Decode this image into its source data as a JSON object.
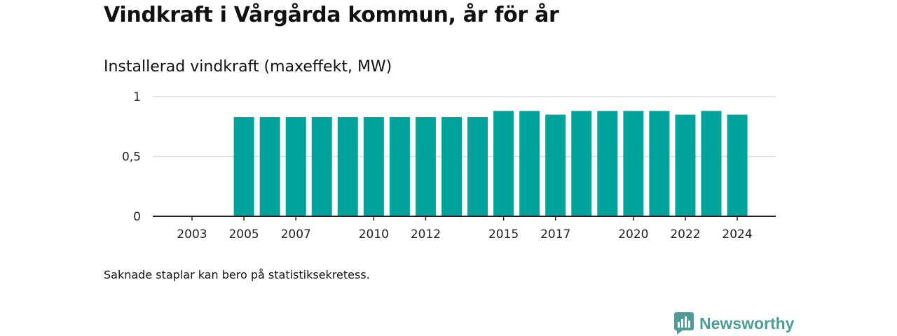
{
  "title": "Vindkraft i Vårgårda kommun, år för år",
  "subtitle": "Installerad vindkraft (maxeffekt, MW)",
  "footnote": "Saknade staplar kan bero på statistiksekretess.",
  "brand": {
    "name": "Newsworthy",
    "icon": "newsworthy-logo-icon",
    "color": "#4f9c97"
  },
  "colors": {
    "bar": "#00a39a",
    "grid": "#dddddd",
    "axis": "#222222"
  },
  "chart_data": {
    "type": "bar",
    "title": "Vindkraft i Vårgårda kommun, år för år",
    "subtitle": "Installerad vindkraft (maxeffekt, MW)",
    "xlabel": "",
    "ylabel": "",
    "categories": [
      2003,
      2004,
      2005,
      2006,
      2007,
      2008,
      2009,
      2010,
      2011,
      2012,
      2013,
      2014,
      2015,
      2016,
      2017,
      2018,
      2019,
      2020,
      2021,
      2022,
      2023,
      2024
    ],
    "values": [
      null,
      null,
      0.83,
      0.83,
      0.83,
      0.83,
      0.83,
      0.83,
      0.83,
      0.83,
      0.83,
      0.83,
      0.88,
      0.88,
      0.85,
      0.88,
      0.88,
      0.88,
      0.88,
      0.85,
      0.88,
      0.85
    ],
    "ylim": [
      0,
      1
    ],
    "yticks": [
      0,
      0.5,
      1
    ],
    "ytick_labels": [
      "0",
      "0,5",
      "1"
    ],
    "xtick_labels": [
      "2003",
      "2005",
      "2007",
      "2010",
      "2012",
      "2015",
      "2017",
      "2020",
      "2022",
      "2024"
    ],
    "grid": true,
    "legend": "none"
  }
}
